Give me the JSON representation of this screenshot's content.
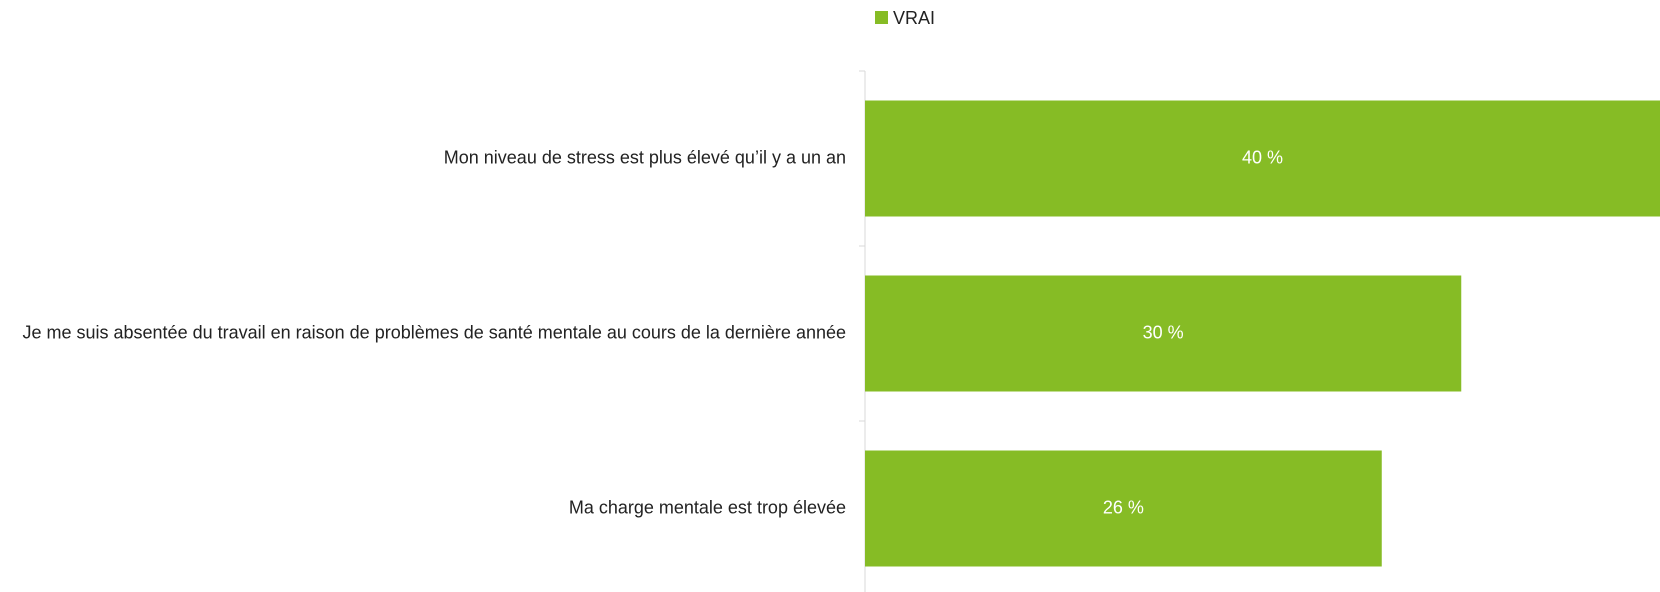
{
  "chart_data": {
    "type": "barh",
    "categories": [
      "Mon niveau de stress est plus élevé qu’il y a un an",
      "Je me suis absentée du travail en raison de problèmes de santé mentale au cours de la dernière année",
      "Ma charge mentale est trop élevée"
    ],
    "series": [
      {
        "name": "VRAI",
        "color": "#86bc25",
        "values": [
          40,
          30,
          26
        ],
        "value_labels": [
          "40 %",
          "30 %",
          "26 %"
        ]
      }
    ],
    "xlim": [
      0,
      40
    ]
  }
}
